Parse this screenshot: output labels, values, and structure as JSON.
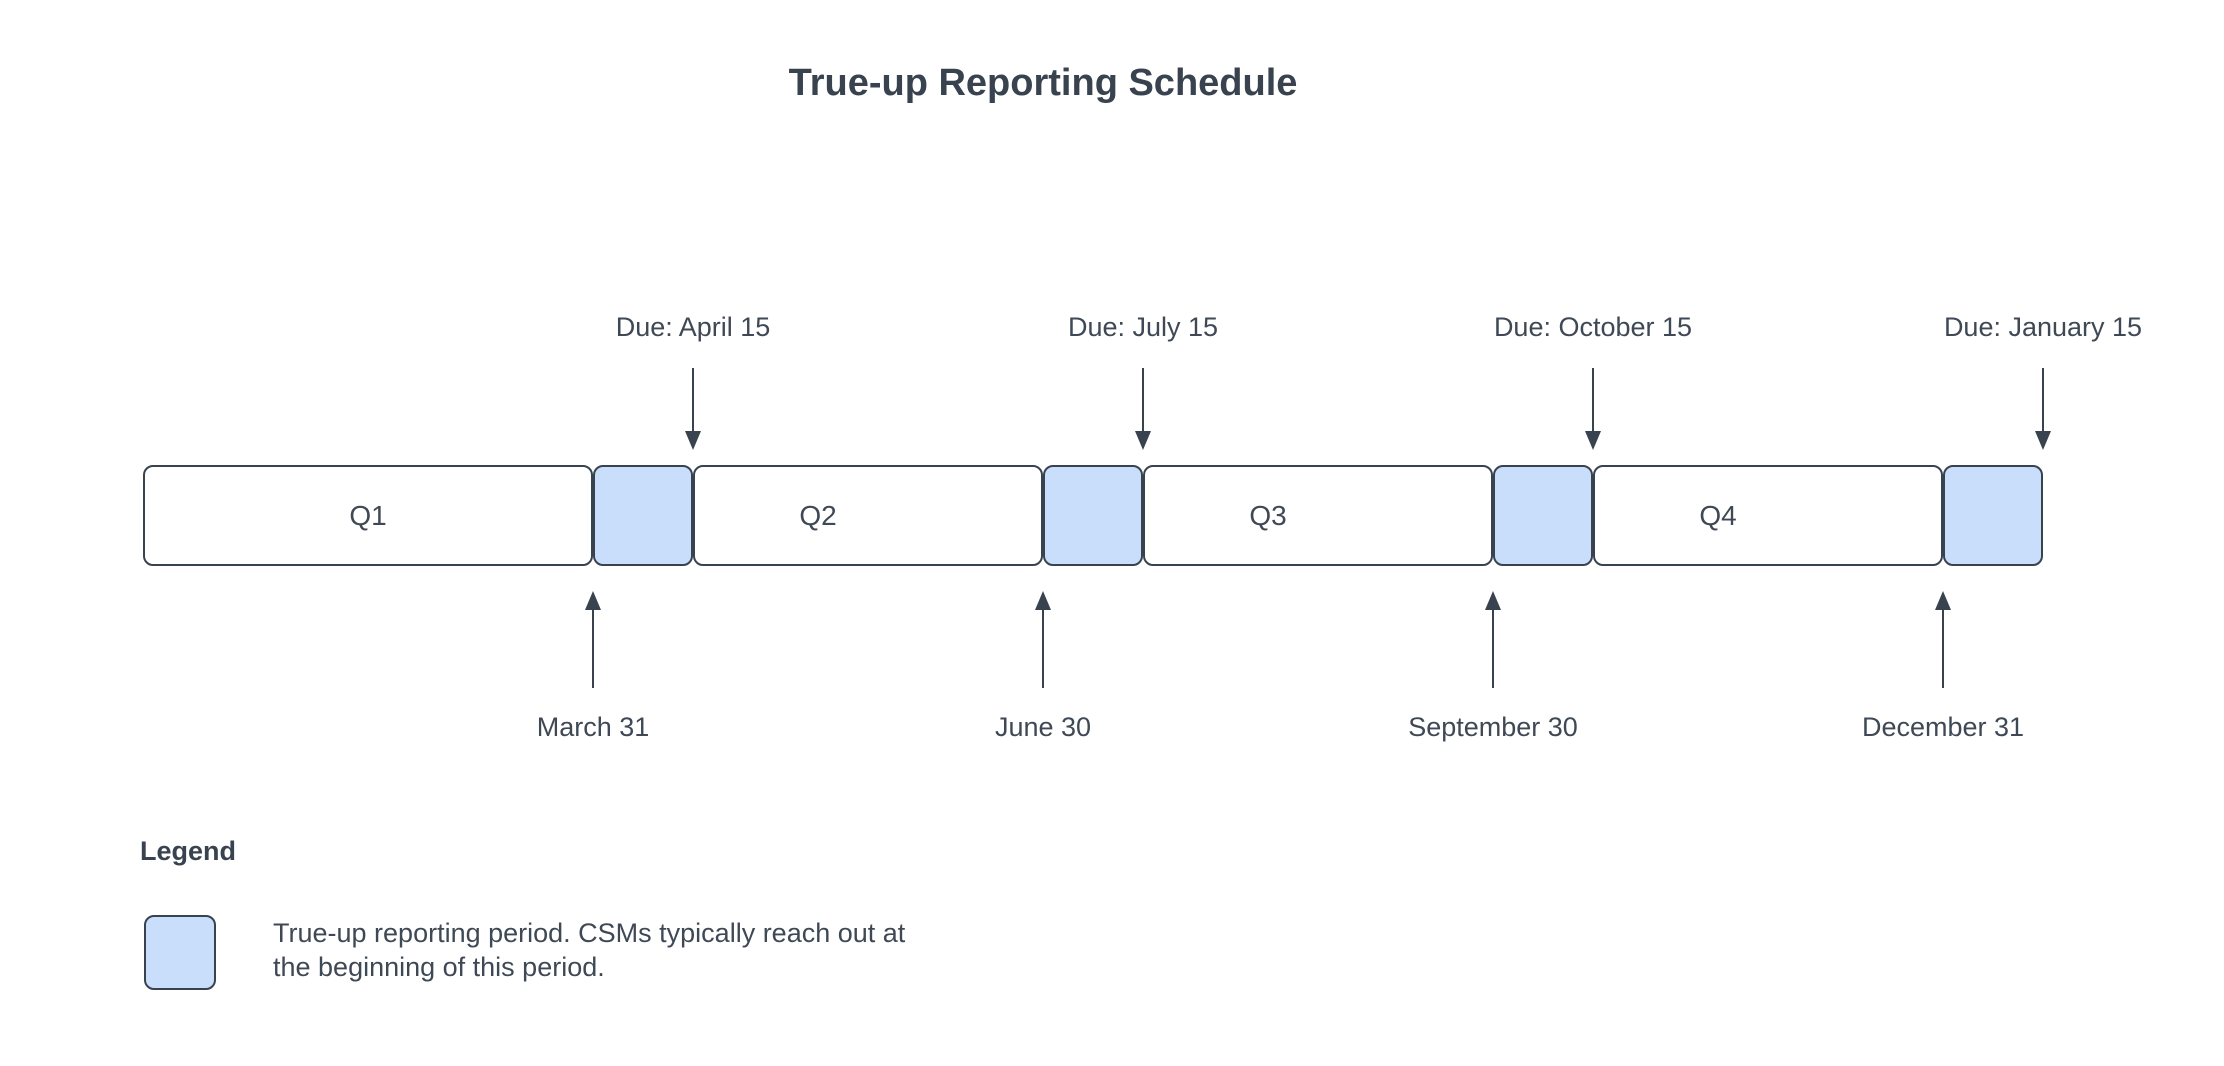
{
  "title": "True-up Reporting Schedule",
  "colors": {
    "ink": "#39434F",
    "text": "#3F4955",
    "trueup_period_fill": "#C8DEFB",
    "background": "#FFFFFF"
  },
  "timeline": {
    "quarters": [
      {
        "label": "Q1",
        "due_label": "Due: April 15",
        "end_label": "March 31"
      },
      {
        "label": "Q2",
        "due_label": "Due: July 15",
        "end_label": "June 30"
      },
      {
        "label": "Q3",
        "due_label": "Due: October 15",
        "end_label": "September 30"
      },
      {
        "label": "Q4",
        "due_label": "Due: January 15",
        "end_label": "December 31"
      }
    ]
  },
  "legend": {
    "heading": "Legend",
    "description": "True-up reporting period. CSMs typically reach out at the beginning of this period."
  }
}
